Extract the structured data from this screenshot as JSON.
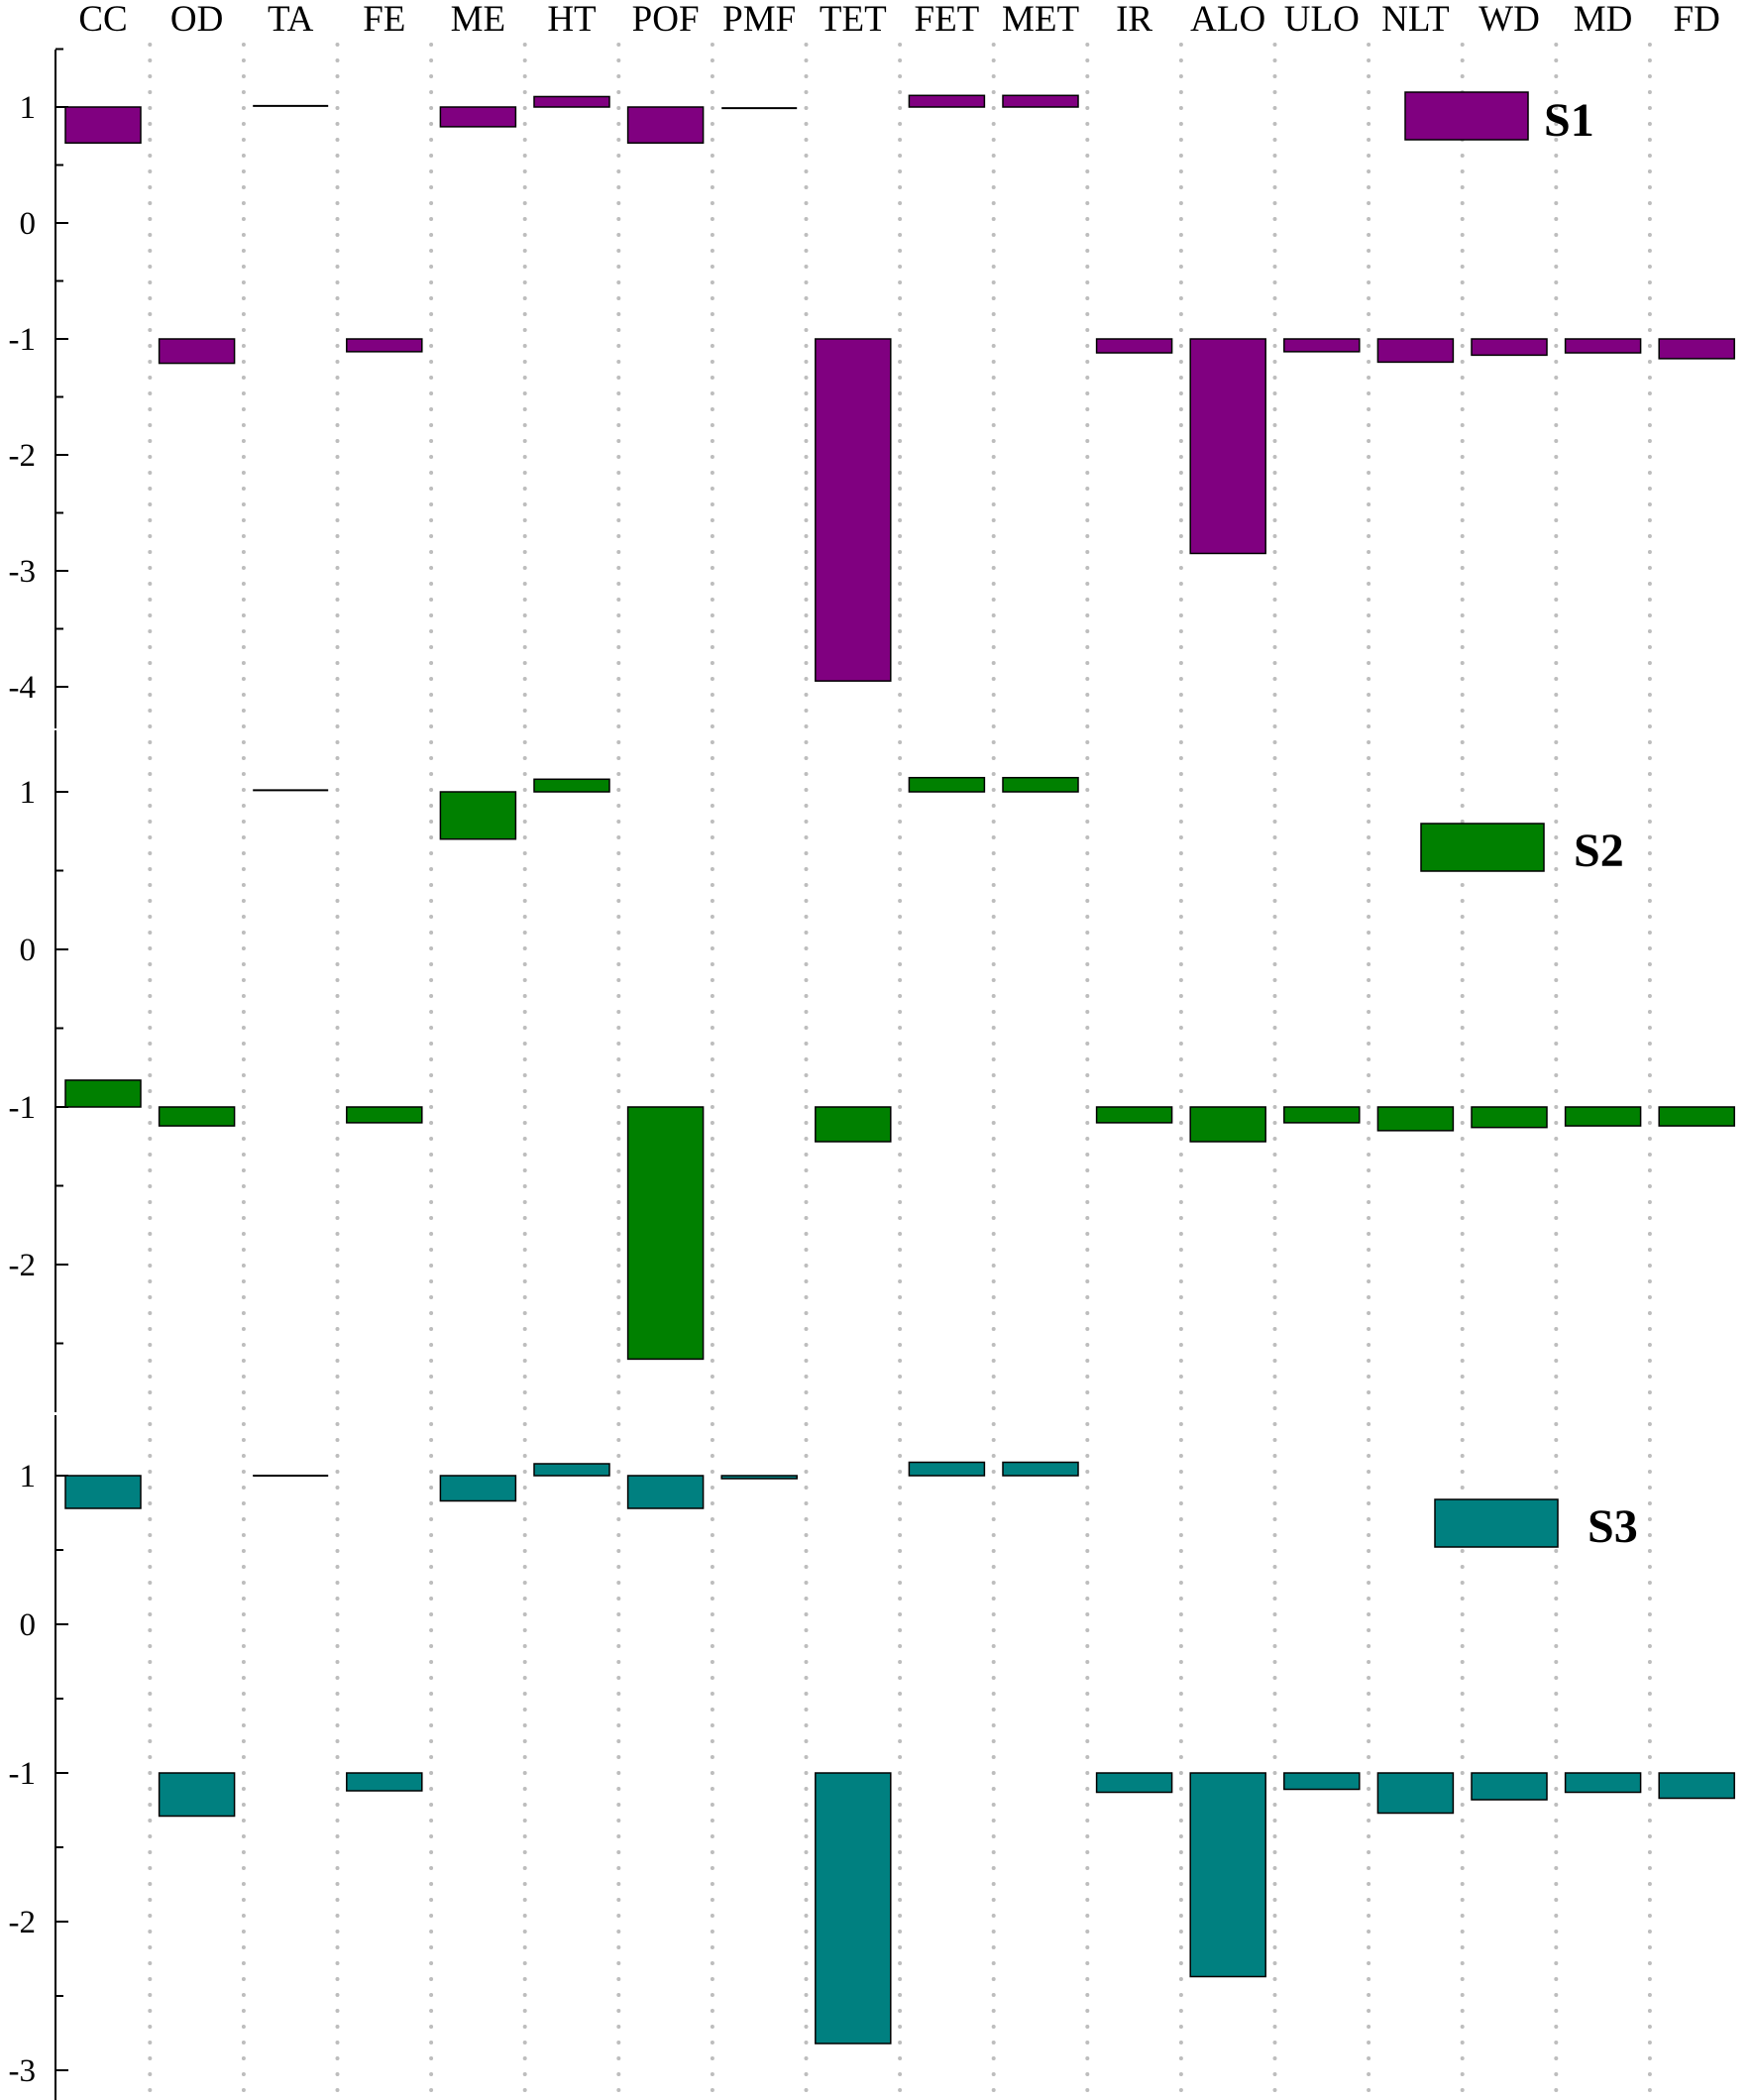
{
  "chart_data": [
    {
      "type": "bar",
      "panel": "S1",
      "categories": [
        "CC",
        "OD",
        "TA",
        "FE",
        "ME",
        "HT",
        "POF",
        "PMF",
        "TET",
        "FET",
        "MET",
        "IR",
        "ALO",
        "ULO",
        "NLT",
        "WD",
        "MD",
        "FD"
      ],
      "series": [
        {
          "name": "S1",
          "color": "#800080",
          "values": [
            0.69,
            -1.21,
            1.01,
            -1.11,
            0.83,
            1.09,
            0.69,
            0.99,
            -3.95,
            1.1,
            1.1,
            -1.12,
            -2.85,
            -1.11,
            -1.2,
            -1.14,
            -1.12,
            -1.17
          ]
        }
      ],
      "baseline_positive": 1,
      "baseline_negative": -1,
      "ylim": [
        -4.15,
        1.5
      ],
      "yticks": [
        1,
        0,
        -1,
        -2,
        -3,
        -4
      ],
      "grid": "vertical dotted"
    },
    {
      "type": "bar",
      "panel": "S2",
      "categories": [
        "CC",
        "OD",
        "TA",
        "FE",
        "ME",
        "HT",
        "POF",
        "PMF",
        "TET",
        "FET",
        "MET",
        "IR",
        "ALO",
        "ULO",
        "NLT",
        "WD",
        "MD",
        "FD"
      ],
      "series": [
        {
          "name": "S2",
          "color": "#008000",
          "values": [
            -0.83,
            -1.12,
            1.01,
            -1.1,
            0.7,
            1.08,
            -2.6,
            null,
            -1.22,
            1.09,
            1.09,
            -1.1,
            -1.22,
            -1.1,
            -1.15,
            -1.13,
            -1.12,
            -1.12
          ]
        }
      ],
      "baseline_positive": 1,
      "baseline_negative": -1,
      "ylim": [
        -2.85,
        1.4
      ],
      "yticks": [
        1,
        0,
        -1,
        -2
      ],
      "grid": "vertical dotted"
    },
    {
      "type": "bar",
      "panel": "S3",
      "categories": [
        "CC",
        "OD",
        "TA",
        "FE",
        "ME",
        "HT",
        "POF",
        "PMF",
        "TET",
        "FET",
        "MET",
        "IR",
        "ALO",
        "ULO",
        "NLT",
        "WD",
        "MD",
        "FD"
      ],
      "series": [
        {
          "name": "S3",
          "color": "#008080",
          "values": [
            0.78,
            -1.29,
            1.0,
            -1.12,
            0.83,
            1.08,
            0.78,
            0.98,
            -2.82,
            1.09,
            1.09,
            -1.13,
            -2.37,
            -1.11,
            -1.27,
            -1.18,
            -1.13,
            -1.17
          ]
        }
      ],
      "baseline_positive": 1,
      "baseline_negative": -1,
      "ylim": [
        -3.1,
        1.4
      ],
      "yticks": [
        1,
        0,
        -1,
        -2,
        -3
      ],
      "grid": "vertical dotted"
    }
  ]
}
